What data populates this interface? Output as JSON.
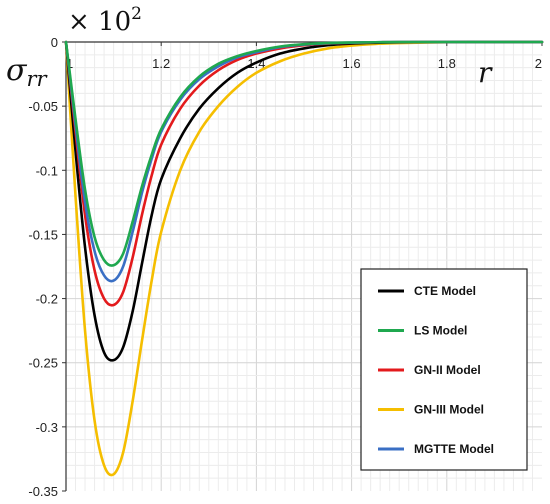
{
  "chart_data": {
    "type": "line",
    "title": "",
    "multiplier_label": "× 10",
    "multiplier_exponent": "2",
    "ylabel_base": "σ",
    "ylabel_sub": "rr",
    "xlabel": "r",
    "xlim": [
      1,
      2
    ],
    "ylim": [
      -0.35,
      0
    ],
    "x_ticks": [
      "1",
      "1.2",
      "1.4",
      "1.6",
      "1.8",
      "2"
    ],
    "y_ticks": [
      "0",
      "-0.05",
      "-0.1",
      "-0.15",
      "-0.2",
      "-0.25",
      "-0.3",
      "-0.35"
    ],
    "grid": true,
    "legend_position": "bottom-right",
    "series": [
      {
        "name": "CTE Model",
        "color": "#000000",
        "x": [
          1,
          1.02,
          1.04,
          1.06,
          1.08,
          1.1,
          1.12,
          1.14,
          1.16,
          1.18,
          1.2,
          1.24,
          1.28,
          1.32,
          1.36,
          1.4,
          1.45,
          1.5,
          1.55,
          1.6,
          1.65,
          1.7,
          1.8,
          1.9,
          2
        ],
        "y": [
          0,
          -0.085,
          -0.16,
          -0.213,
          -0.242,
          -0.248,
          -0.238,
          -0.21,
          -0.172,
          -0.135,
          -0.107,
          -0.075,
          -0.052,
          -0.036,
          -0.024,
          -0.016,
          -0.009,
          -0.005,
          -0.0025,
          -0.0012,
          -0.0006,
          -0.0003,
          0,
          0,
          0
        ]
      },
      {
        "name": "LS Model",
        "color": "#1fa84f",
        "x": [
          1,
          1.02,
          1.04,
          1.06,
          1.08,
          1.1,
          1.12,
          1.14,
          1.16,
          1.18,
          1.2,
          1.24,
          1.28,
          1.32,
          1.36,
          1.4,
          1.45,
          1.5,
          1.55,
          1.6,
          1.65,
          1.7,
          1.8,
          1.9,
          2
        ],
        "y": [
          0,
          -0.06,
          -0.115,
          -0.152,
          -0.17,
          -0.174,
          -0.165,
          -0.14,
          -0.112,
          -0.088,
          -0.068,
          -0.043,
          -0.027,
          -0.017,
          -0.011,
          -0.007,
          -0.0035,
          -0.0017,
          -0.0008,
          -0.0004,
          -0.0002,
          0,
          0,
          0,
          0
        ]
      },
      {
        "name": "GN-II Model",
        "color": "#e31a1c",
        "x": [
          1,
          1.02,
          1.04,
          1.06,
          1.08,
          1.1,
          1.12,
          1.14,
          1.16,
          1.18,
          1.2,
          1.24,
          1.28,
          1.32,
          1.36,
          1.4,
          1.45,
          1.5,
          1.55,
          1.6,
          1.65,
          1.7,
          1.8,
          1.9,
          2
        ],
        "y": [
          0,
          -0.07,
          -0.135,
          -0.178,
          -0.2,
          -0.205,
          -0.195,
          -0.168,
          -0.134,
          -0.104,
          -0.08,
          -0.052,
          -0.034,
          -0.022,
          -0.014,
          -0.009,
          -0.005,
          -0.0025,
          -0.0012,
          -0.0006,
          -0.0003,
          0,
          0,
          0,
          0
        ]
      },
      {
        "name": "GN-III Model",
        "color": "#f5be00",
        "x": [
          1,
          1.02,
          1.04,
          1.06,
          1.08,
          1.1,
          1.12,
          1.14,
          1.16,
          1.18,
          1.2,
          1.24,
          1.28,
          1.32,
          1.36,
          1.4,
          1.45,
          1.5,
          1.55,
          1.6,
          1.65,
          1.7,
          1.8,
          1.9,
          2
        ],
        "y": [
          0,
          -0.12,
          -0.225,
          -0.295,
          -0.33,
          -0.337,
          -0.32,
          -0.28,
          -0.232,
          -0.186,
          -0.148,
          -0.1,
          -0.07,
          -0.05,
          -0.035,
          -0.024,
          -0.015,
          -0.009,
          -0.005,
          -0.0028,
          -0.0015,
          -0.0008,
          -0.0002,
          0,
          0
        ]
      },
      {
        "name": "MGTTE Model",
        "color": "#3a6fc4",
        "x": [
          1,
          1.02,
          1.04,
          1.06,
          1.08,
          1.1,
          1.12,
          1.14,
          1.16,
          1.18,
          1.2,
          1.24,
          1.28,
          1.32,
          1.36,
          1.4,
          1.45,
          1.5,
          1.55,
          1.6,
          1.65,
          1.7,
          1.8,
          1.9,
          2
        ],
        "y": [
          0,
          -0.065,
          -0.125,
          -0.163,
          -0.182,
          -0.186,
          -0.175,
          -0.148,
          -0.117,
          -0.091,
          -0.07,
          -0.045,
          -0.029,
          -0.019,
          -0.012,
          -0.008,
          -0.004,
          -0.002,
          -0.001,
          -0.0005,
          -0.0002,
          0,
          0,
          0,
          0
        ]
      }
    ]
  }
}
